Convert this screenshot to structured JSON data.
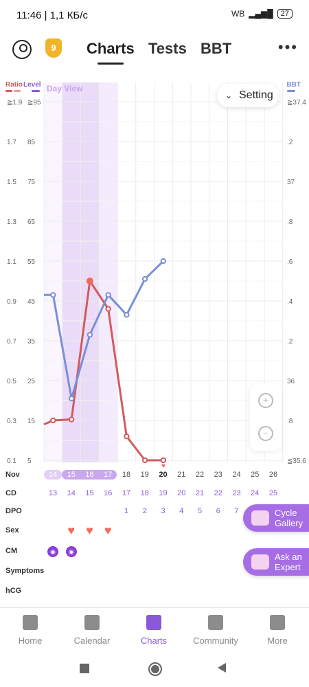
{
  "status_bar": {
    "time": "11:46",
    "info": "| 1,1 КБ/с",
    "battery": "27",
    "app_tag": "WB"
  },
  "header": {
    "badge": "9",
    "tabs": [
      "Charts",
      "Tests",
      "BBT"
    ],
    "active_tab": "Charts"
  },
  "chart_controls": {
    "day_view": "Day View",
    "setting": "Setting"
  },
  "axes_headers": {
    "ratio": "Ratio",
    "level": "Level",
    "bbt": "BBT"
  },
  "colors": {
    "ratio": "#d35b5b",
    "level": "#8a5ad6",
    "bbt": "#7a8fd6",
    "fertile": "#eadbf8"
  },
  "chart_data": {
    "type": "line",
    "x_label_row": "Nov",
    "dates": [
      "14",
      "15",
      "16",
      "17",
      "18",
      "19",
      "20",
      "21",
      "22",
      "23",
      "24",
      "25",
      "26"
    ],
    "ratio_ticks": [
      "≧1.9",
      "1.7",
      "1.5",
      "1.3",
      "1.1",
      "0.9",
      "0.7",
      "0.5",
      "0.3",
      "0.1"
    ],
    "level_ticks": [
      "≧95",
      "85",
      "75",
      "65",
      "55",
      "45",
      "35",
      "25",
      "15",
      "5"
    ],
    "bbt_ticks": [
      "≧37.4",
      ".2",
      "37",
      ".8",
      ".6",
      ".4",
      ".2",
      "36",
      ".8",
      "≦35.6"
    ],
    "ylim_ratio": [
      0.1,
      1.9
    ],
    "series": [
      {
        "key": "ratio",
        "x": [
          13.5,
          14,
          15,
          16,
          17,
          18,
          19,
          20
        ],
        "values": [
          0.28,
          0.3,
          0.305,
          1.0,
          0.86,
          0.22,
          0.1,
          0.1
        ]
      },
      {
        "key": "bbt",
        "x": [
          13.5,
          14,
          15,
          16,
          17,
          18,
          19,
          20
        ],
        "values": [
          36.43,
          36.43,
          35.91,
          36.23,
          36.43,
          36.33,
          36.51,
          36.6
        ]
      }
    ]
  },
  "rows": {
    "labels": [
      "Nov",
      "CD",
      "DPO",
      "Sex",
      "CM",
      "Symptoms",
      "hCG"
    ],
    "cd": [
      "13",
      "14",
      "15",
      "16",
      "17",
      "18",
      "19",
      "20",
      "21",
      "22",
      "23",
      "24",
      "25"
    ],
    "dpo": [
      "1",
      "2",
      "3",
      "4",
      "5",
      "6",
      "7"
    ],
    "sex_days": [
      1,
      2,
      3
    ],
    "cm_days": [
      0,
      1
    ]
  },
  "fabs": {
    "cycle_gallery": "Cycle Gallery",
    "ask_expert": "Ask an Expert"
  },
  "nav": {
    "items": [
      "Home",
      "Calendar",
      "Charts",
      "Community",
      "More"
    ],
    "active": "Charts"
  }
}
